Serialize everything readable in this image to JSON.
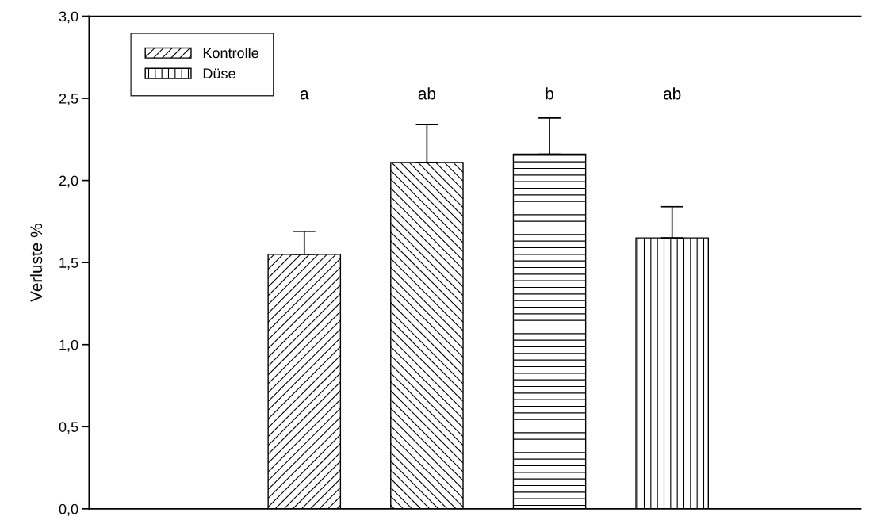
{
  "chart_data": {
    "type": "bar",
    "ylabel": "Verluste %",
    "categories": [
      null
    ],
    "series": [
      {
        "name": "Kontrolle",
        "color": "#000000",
        "values": [
          1.55
        ],
        "errors": [
          [
            1.55,
            1.69
          ]
        ]
      },
      {
        "color": "#000000",
        "values": [
          2.11
        ],
        "errors": [
          [
            2.11,
            2.34
          ]
        ]
      },
      {
        "color": "#000000",
        "values": [
          2.16
        ],
        "errors": [
          [
            2.16,
            2.38
          ]
        ]
      },
      {
        "name": "Düse",
        "color": "#000000",
        "values": [
          1.65
        ],
        "errors": [
          [
            1.65,
            1.84
          ]
        ]
      }
    ],
    "annotations": [
      "a",
      "ab",
      "b",
      "ab"
    ],
    "ylim": [
      0,
      3.0
    ],
    "yticks": [
      {
        "value": 0,
        "label": "0,0"
      },
      {
        "value": 0.5,
        "label": "0,5"
      },
      {
        "value": 1.0,
        "label": "1,0"
      },
      {
        "value": 1.5,
        "label": "1,5"
      },
      {
        "value": 2.0,
        "label": "2,0"
      },
      {
        "value": 2.5,
        "label": "2,5"
      },
      {
        "value": 3.0,
        "label": "3,0"
      }
    ],
    "legend": "top left",
    "grid": false
  }
}
